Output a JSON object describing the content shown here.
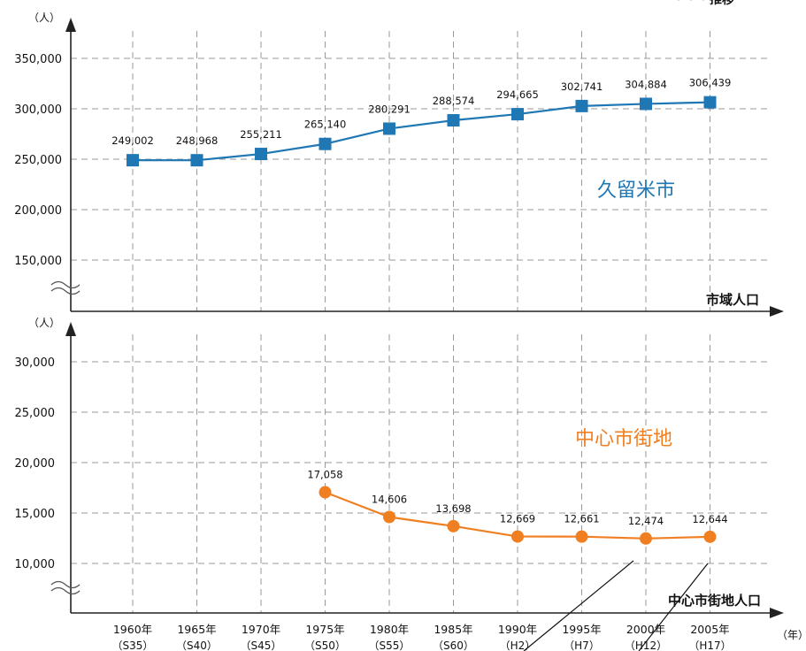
{
  "chart_data": [
    {
      "type": "line",
      "name": "市域人口",
      "series": [
        {
          "name": "久留米市",
          "values": [
            249002,
            248968,
            255211,
            265140,
            280291,
            288574,
            294665,
            302741,
            304884,
            306439
          ]
        }
      ],
      "value_labels": [
        "249,002",
        "248,968",
        "255,211",
        "265,140",
        "280,291",
        "288,574",
        "294,665",
        "302,741",
        "304,884",
        "306,439"
      ],
      "y_ticks": [
        150000,
        200000,
        250000,
        300000,
        350000
      ],
      "y_tick_labels": [
        "150,000",
        "200,000",
        "250,000",
        "300,000",
        "350,000"
      ],
      "ylim": [
        125000,
        350000
      ],
      "ylabel": "（人）",
      "axis_title": "市域人口",
      "marker": "square",
      "color": "#1f77b4",
      "grid": true
    },
    {
      "type": "line",
      "name": "中心市街地人口",
      "series": [
        {
          "name": "中心市街地",
          "values": [
            null,
            null,
            null,
            17058,
            14606,
            13698,
            12669,
            12661,
            12474,
            12644
          ]
        }
      ],
      "value_labels": [
        null,
        null,
        null,
        "17,058",
        "14,606",
        "13,698",
        "12,669",
        "12,661",
        "12,474",
        "12,644"
      ],
      "y_ticks": [
        10000,
        15000,
        20000,
        25000,
        30000
      ],
      "y_tick_labels": [
        "10,000",
        "15,000",
        "20,000",
        "25,000",
        "30,000"
      ],
      "ylim": [
        5000,
        30000
      ],
      "ylabel": "（人）",
      "axis_title": "中心市街地人口",
      "marker": "circle",
      "color": "#f07f22",
      "grid": true
    }
  ],
  "x_categories": [
    "1960年",
    "1965年",
    "1970年",
    "1975年",
    "1980年",
    "1985年",
    "1990年",
    "1995年",
    "2000年",
    "2005年"
  ],
  "x_categories_era": [
    "（S35）",
    "（S40）",
    "（S45）",
    "（S50）",
    "（S55）",
    "（S60）",
    "（H2）",
    "（H7）",
    "（H12）",
    "（H17）"
  ],
  "xlabel": "（年）",
  "title": "・・・推移",
  "colors": {
    "top_series": "#1f77b4",
    "bottom_series": "#f07f22",
    "grid": "#999999",
    "axis": "#222222"
  }
}
